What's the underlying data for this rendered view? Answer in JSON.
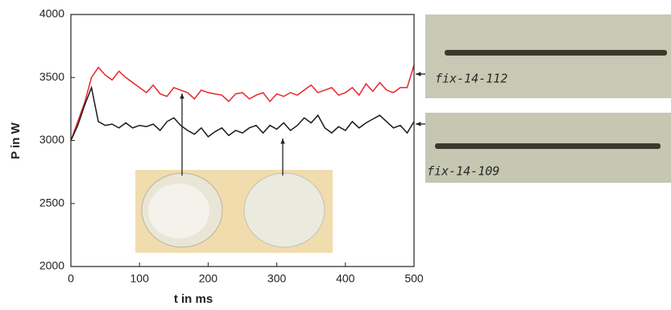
{
  "chart_data": {
    "type": "line",
    "x": [
      0,
      10,
      20,
      30,
      40,
      50,
      60,
      70,
      80,
      90,
      100,
      110,
      120,
      130,
      140,
      150,
      160,
      170,
      180,
      190,
      200,
      210,
      220,
      230,
      240,
      250,
      260,
      270,
      280,
      290,
      300,
      310,
      320,
      330,
      340,
      350,
      360,
      370,
      380,
      390,
      400,
      410,
      420,
      430,
      440,
      450,
      460,
      470,
      480,
      490,
      500
    ],
    "series": [
      {
        "color": "#e8262a",
        "values": [
          3000,
          3150,
          3300,
          3500,
          3580,
          3520,
          3480,
          3550,
          3500,
          3460,
          3420,
          3380,
          3440,
          3370,
          3350,
          3420,
          3400,
          3380,
          3330,
          3400,
          3380,
          3370,
          3360,
          3310,
          3370,
          3380,
          3330,
          3360,
          3380,
          3310,
          3370,
          3350,
          3380,
          3360,
          3400,
          3440,
          3380,
          3400,
          3420,
          3360,
          3380,
          3420,
          3360,
          3450,
          3390,
          3460,
          3400,
          3380,
          3420,
          3420,
          3600
        ]
      },
      {
        "color": "#1a1a1a",
        "values": [
          3000,
          3120,
          3280,
          3420,
          3150,
          3120,
          3130,
          3100,
          3140,
          3100,
          3120,
          3110,
          3130,
          3080,
          3150,
          3180,
          3120,
          3080,
          3050,
          3100,
          3030,
          3070,
          3100,
          3040,
          3080,
          3060,
          3100,
          3120,
          3060,
          3120,
          3090,
          3140,
          3080,
          3120,
          3180,
          3140,
          3200,
          3100,
          3060,
          3110,
          3080,
          3150,
          3100,
          3140,
          3170,
          3200,
          3150,
          3100,
          3120,
          3060,
          3150
        ]
      }
    ],
    "xlabel": "t in ms",
    "ylabel": "P in W",
    "xlim": [
      0,
      500
    ],
    "xticks": [
      0,
      100,
      200,
      300,
      400,
      500
    ],
    "ylim": [
      2000,
      4000
    ],
    "yticks": [
      2000,
      2500,
      3000,
      3500,
      4000
    ],
    "annotations": [
      "fix-14-112",
      "fix-14-109"
    ]
  }
}
